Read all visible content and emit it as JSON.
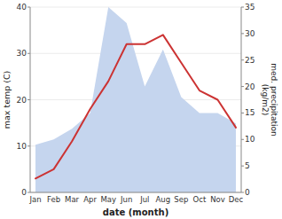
{
  "chart_data": {
    "type": "line",
    "categories": [
      "Jan",
      "Feb",
      "Mar",
      "Apr",
      "May",
      "Jun",
      "Jul",
      "Aug",
      "Sep",
      "Oct",
      "Nov",
      "Dec"
    ],
    "series": [
      {
        "type": "area",
        "axis": "y2",
        "color": "#c5d5ee",
        "values": [
          9,
          10,
          12,
          15,
          35,
          32,
          20,
          27,
          18,
          15,
          15,
          13
        ]
      },
      {
        "type": "line",
        "color": "#cc3333",
        "values": [
          3,
          5,
          11,
          18,
          24,
          32,
          32,
          34,
          28,
          22,
          20,
          14
        ]
      }
    ],
    "xlabel": "date (month)",
    "ylabel": "max temp (C)",
    "y2label": "med. precipitation\n(kg/m2)",
    "ylim": [
      0,
      40
    ],
    "yticks": [
      0,
      10,
      20,
      30,
      40
    ],
    "y2lim": [
      0,
      35
    ],
    "y2ticks": [
      0,
      5,
      10,
      15,
      20,
      25,
      30,
      35
    ],
    "grid": true
  }
}
